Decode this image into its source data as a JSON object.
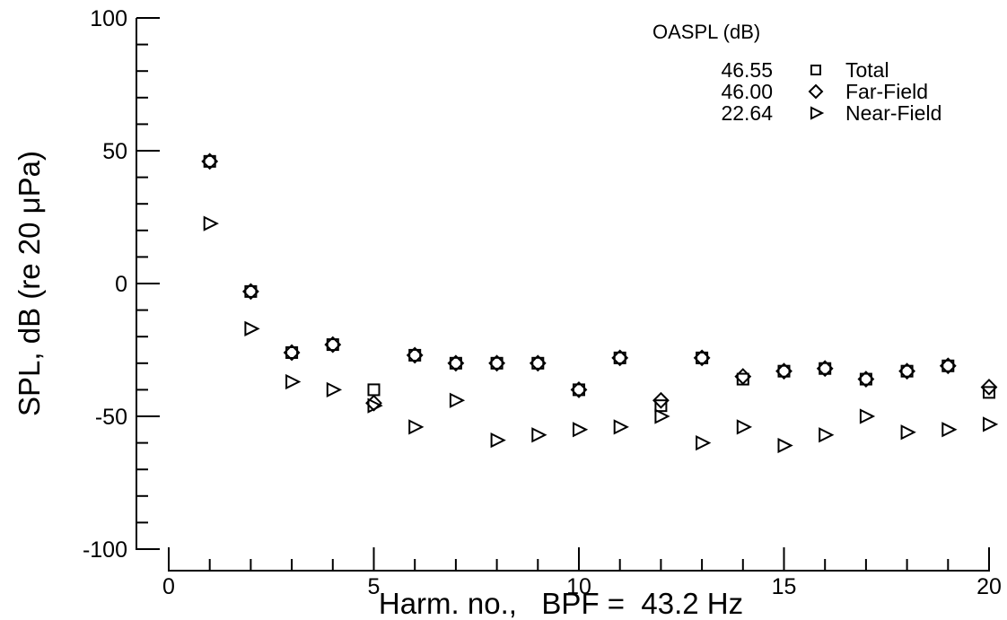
{
  "chart_data": {
    "type": "scatter",
    "xlabel": "Harm. no.,   BPF =  43.2 Hz",
    "ylabel": "SPL, dB (re 20 μPa)",
    "xlim": [
      0,
      20
    ],
    "ylim": [
      -100,
      100
    ],
    "x_ticks": [
      "0",
      "5",
      "10",
      "15",
      "20"
    ],
    "y_ticks": [
      "100",
      "50",
      "0",
      "-50",
      "-100"
    ],
    "grid": false,
    "legend": {
      "title": "OASPL (dB)",
      "placement": "top-right",
      "entries": [
        {
          "value": "46.55",
          "label": "Total",
          "marker": "square"
        },
        {
          "value": "46.00",
          "label": "Far-Field",
          "marker": "diamond"
        },
        {
          "value": "22.64",
          "label": "Near-Field",
          "marker": "triangle-right"
        }
      ]
    },
    "x": [
      1,
      2,
      3,
      4,
      5,
      6,
      7,
      8,
      9,
      10,
      11,
      12,
      13,
      14,
      15,
      16,
      17,
      18,
      19,
      20
    ],
    "series": [
      {
        "name": "Total",
        "marker": "square",
        "values": [
          46,
          -3,
          -26,
          -23,
          -40,
          -27,
          -30,
          -30,
          -30,
          -40,
          -28,
          -46,
          -28,
          -36,
          -33,
          -32,
          -36,
          -33,
          -31,
          -41
        ]
      },
      {
        "name": "Far-Field",
        "marker": "diamond",
        "values": [
          46,
          -3,
          -26,
          -23,
          -45,
          -27,
          -30,
          -30,
          -30,
          -40,
          -28,
          -44,
          -28,
          -35,
          -33,
          -32,
          -36,
          -33,
          -31,
          -39
        ]
      },
      {
        "name": "Near-Field",
        "marker": "triangle-right",
        "values": [
          22.6,
          -17,
          -37,
          -40,
          -46,
          -54,
          -44,
          -59,
          -57,
          -55,
          -54,
          -50,
          -60,
          -54,
          -61,
          -57,
          -50,
          -56,
          -55,
          -53
        ]
      }
    ]
  }
}
